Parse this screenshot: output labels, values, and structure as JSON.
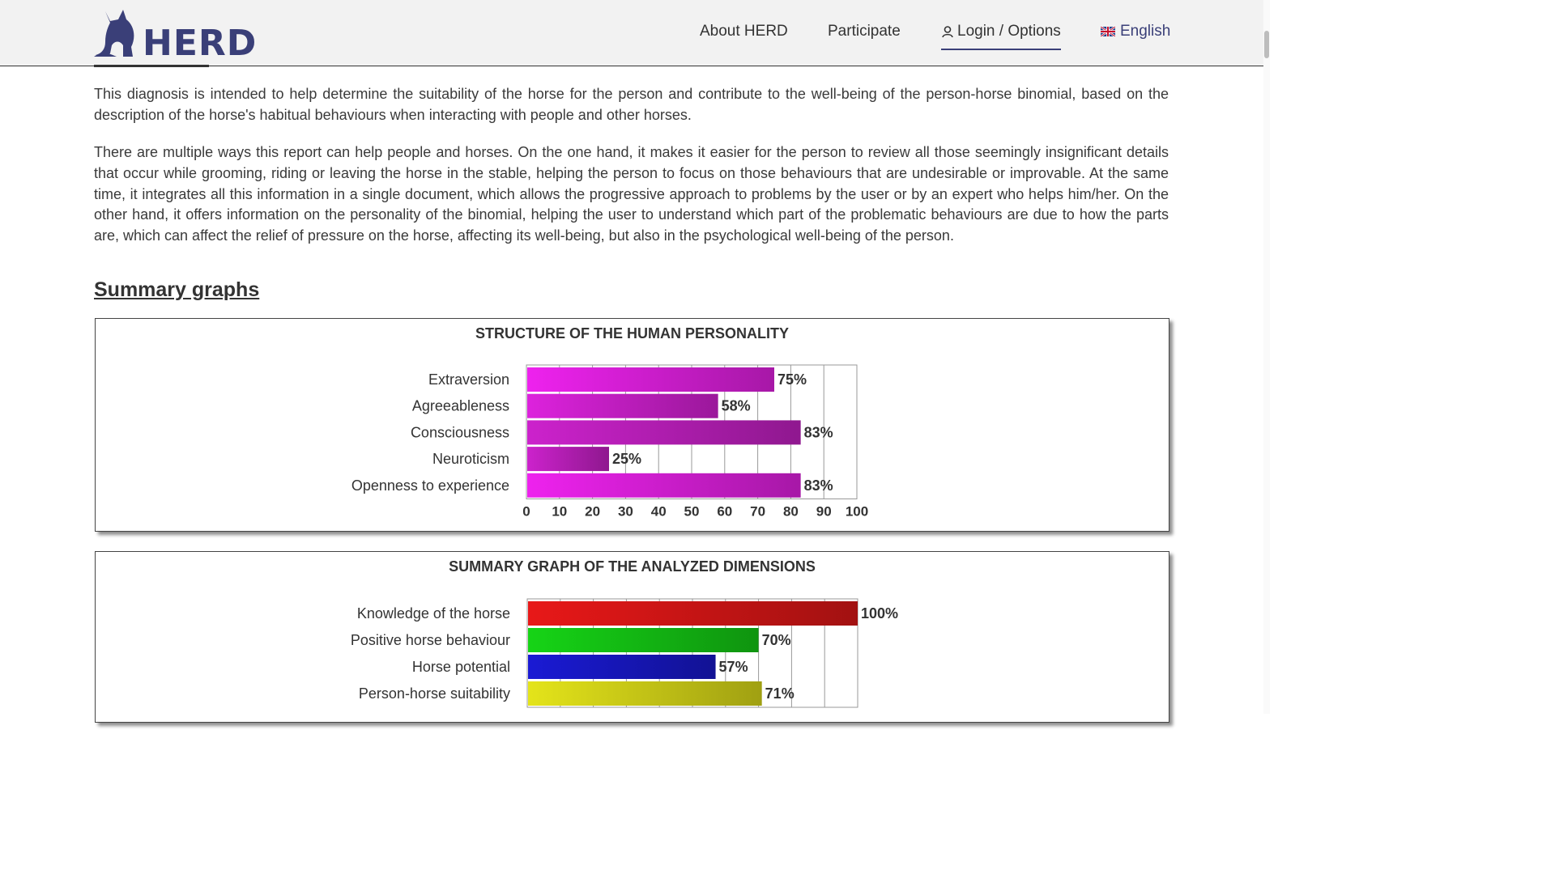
{
  "header": {
    "logo_text": "HERD",
    "nav": {
      "about": "About HERD",
      "participate": "Participate",
      "login": "Login / Options",
      "language": "English"
    }
  },
  "content": {
    "paragraph1": "This diagnosis is intended to help determine the suitability of the horse for the person and contribute to the well-being of the person-horse binomial, based on the description of the horse's habitual behaviours when interacting with people and other horses.",
    "paragraph2": "There are multiple ways this report can help people and horses. On the one hand, it makes it easier for the person to review all those seemingly insignificant details that occur while grooming, riding or leaving the horse in the stable, helping the person to focus on those behaviours that are undesirable or improvable. At the same time, it integrates all this information in a single document, which allows the progressive approach to problems by the user or by an expert who helps him/her. On the other hand, it offers information on the personality of the binomial, helping the user to understand which part of the problematic behaviours are due to how the parts are, which can affect the relief of pressure on the horse, affecting its well-being, but also in the psychological well-being of the person.",
    "section_title": "Summary graphs"
  },
  "chart_data": [
    {
      "type": "bar",
      "orientation": "horizontal",
      "title": "STRUCTURE OF THE HUMAN PERSONALITY",
      "categories": [
        "Extraversion",
        "Agreeableness",
        "Consciousness",
        "Neuroticism",
        "Openness to experience"
      ],
      "values": [
        75,
        58,
        83,
        25,
        83
      ],
      "value_labels": [
        "75%",
        "58%",
        "83%",
        "25%",
        "83%"
      ],
      "xlim": [
        0,
        100
      ],
      "xticks": [
        "0",
        "10",
        "20",
        "30",
        "40",
        "50",
        "60",
        "70",
        "80",
        "90",
        "100"
      ],
      "grid": true,
      "colors": [
        "#ee22ee",
        "#dd22dd",
        "#cc22cc",
        "#cc22cc",
        "#ee22ee"
      ]
    },
    {
      "type": "bar",
      "orientation": "horizontal",
      "title": "SUMMARY GRAPH OF THE ANALYZED DIMENSIONS",
      "categories": [
        "Knowledge of the horse",
        "Positive horse behaviour",
        "Horse potential",
        "Person-horse suitability"
      ],
      "values": [
        100,
        70,
        57,
        71
      ],
      "value_labels": [
        "100%",
        "70%",
        "57%",
        "71%"
      ],
      "xlim": [
        0,
        100
      ],
      "grid": true,
      "colors": [
        "#e81818",
        "#16d416",
        "#1a1ad4",
        "#e4e41a"
      ]
    }
  ]
}
